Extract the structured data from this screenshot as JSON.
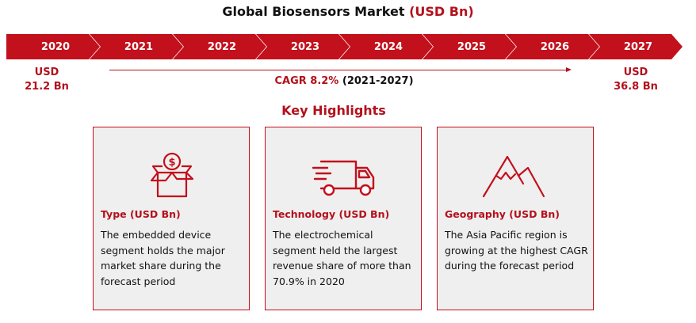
{
  "header": {
    "title_main": "Global Biosensors Market",
    "title_unit": "(USD Bn)"
  },
  "timeline": {
    "years": [
      "2020",
      "2021",
      "2022",
      "2023",
      "2024",
      "2025",
      "2026",
      "2027"
    ],
    "start_value": {
      "currency": "USD",
      "amount": "21.2 Bn"
    },
    "end_value": {
      "currency": "USD",
      "amount": "36.8 Bn"
    },
    "cagr_label": "CAGR 8.2%",
    "cagr_period": "(2021-2027)"
  },
  "highlights": {
    "title": "Key Highlights",
    "cards": [
      {
        "icon": "money-box-icon",
        "title": "Type (USD Bn)",
        "body": "The embedded device segment holds the major market share during the forecast period"
      },
      {
        "icon": "delivery-truck-icon",
        "title": "Technology (USD Bn)",
        "body": "The electrochemical segment held the largest revenue share of more than 70.9% in 2020"
      },
      {
        "icon": "mountain-icon",
        "title": "Geography (USD Bn)",
        "body": "The Asia Pacific region is growing at the highest CAGR during the forecast period"
      }
    ]
  },
  "colors": {
    "accent": "#c2101c",
    "card_bg": "#f0efef"
  }
}
